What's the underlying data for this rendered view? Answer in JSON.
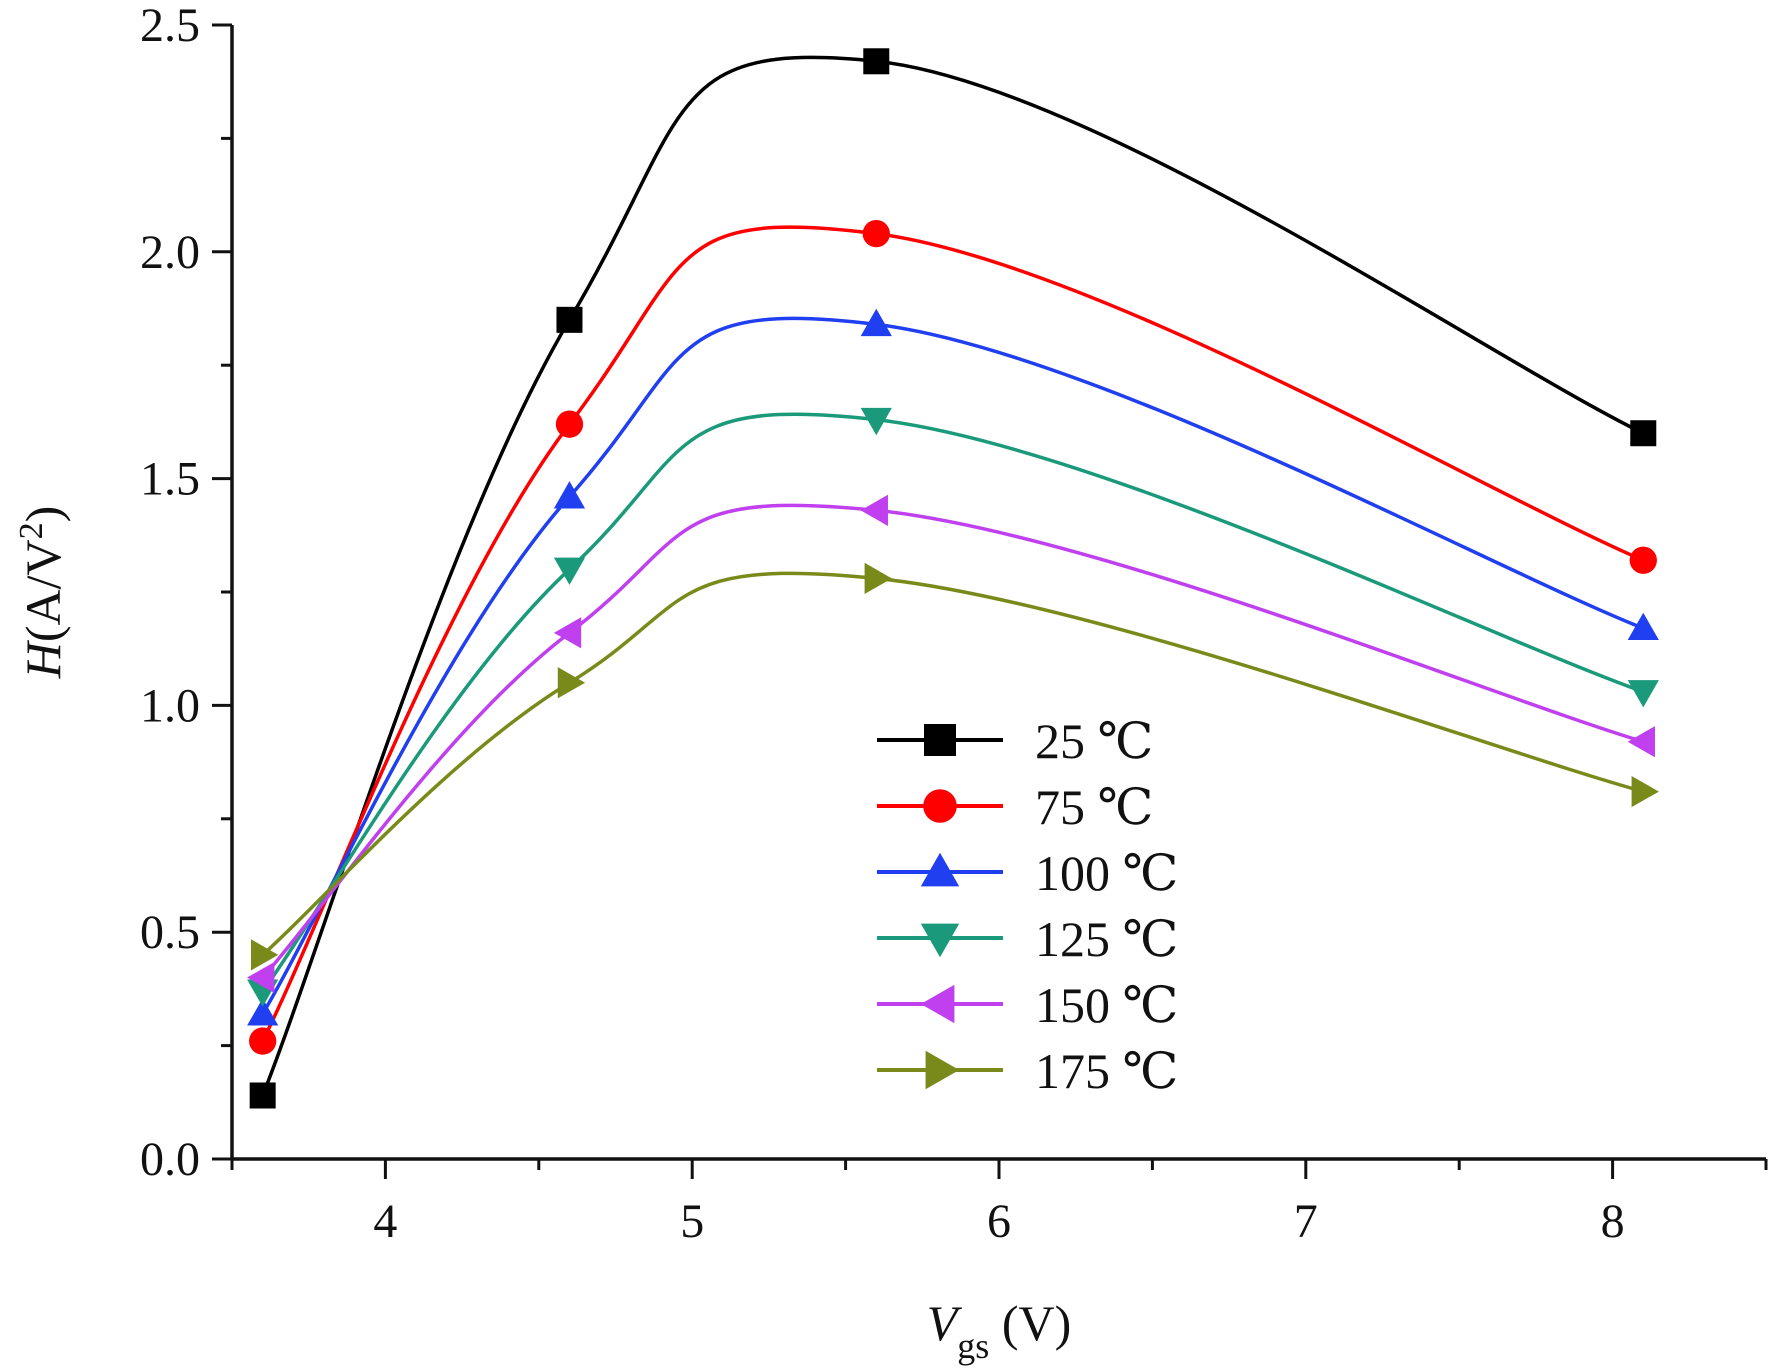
{
  "chart_data": {
    "type": "line",
    "xlabel": {
      "main": "V",
      "sub": "gs",
      "unit": " (V)"
    },
    "ylabel": {
      "main": "H",
      "unit": "(A/V",
      "sup": "2",
      "close": ")"
    },
    "xlim": [
      3.5,
      8.5
    ],
    "ylim": [
      0.0,
      2.5
    ],
    "xticks": [
      4,
      5,
      6,
      7,
      8
    ],
    "xtick_labels": [
      "4",
      "5",
      "6",
      "7",
      "8"
    ],
    "yticks": [
      0.0,
      0.5,
      1.0,
      1.5,
      2.0,
      2.5
    ],
    "ytick_labels": [
      "0.0",
      "0.5",
      "1.0",
      "1.5",
      "2.0",
      "2.5"
    ],
    "x": [
      3.6,
      4.6,
      5.6,
      8.1
    ],
    "series": [
      {
        "name": "25 ℃",
        "color": "#000000",
        "marker": "square",
        "values": [
          0.14,
          1.85,
          2.42,
          1.6
        ]
      },
      {
        "name": "75 ℃",
        "color": "#ff0000",
        "marker": "circle",
        "values": [
          0.26,
          1.62,
          2.04,
          1.32
        ]
      },
      {
        "name": "100 ℃",
        "color": "#1f3ff0",
        "marker": "triangle-up",
        "values": [
          0.32,
          1.46,
          1.84,
          1.17
        ]
      },
      {
        "name": "125 ℃",
        "color": "#1a9a7a",
        "marker": "triangle-down",
        "values": [
          0.37,
          1.3,
          1.63,
          1.03
        ]
      },
      {
        "name": "150 ℃",
        "color": "#c040f0",
        "marker": "triangle-left",
        "values": [
          0.4,
          1.16,
          1.43,
          0.92
        ]
      },
      {
        "name": "175 ℃",
        "color": "#7a8a1a",
        "marker": "triangle-right",
        "values": [
          0.45,
          1.05,
          1.28,
          0.81
        ]
      }
    ],
    "grid": false,
    "legend_position": "center-bottom"
  }
}
